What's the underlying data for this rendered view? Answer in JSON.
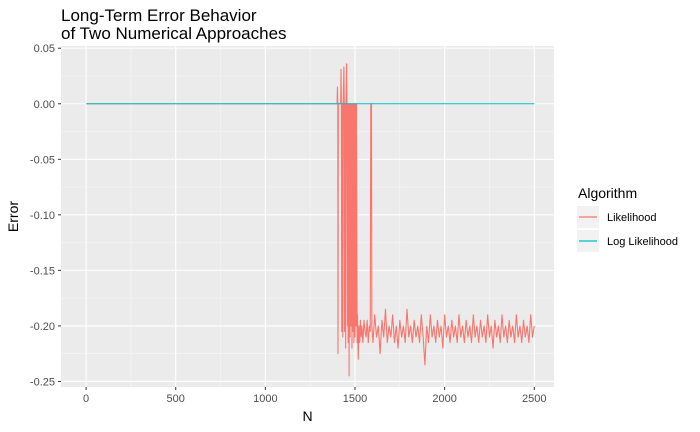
{
  "chart_data": {
    "type": "line",
    "title": "Long-Term Error Behavior\n of Two Numerical Approaches",
    "xlabel": "N",
    "ylabel": "Error",
    "xlim": [
      -140,
      2610
    ],
    "ylim": [
      -0.255,
      0.052
    ],
    "x_ticks": [
      0,
      500,
      1000,
      1500,
      2000,
      2500
    ],
    "x_tick_labels": [
      "0",
      "500",
      "1000",
      "1500",
      "2000",
      "2500"
    ],
    "y_ticks": [
      0.05,
      0.0,
      -0.05,
      -0.1,
      -0.15,
      -0.2,
      -0.25
    ],
    "y_tick_labels": [
      "0.05",
      "0.00",
      "-0.05",
      "-0.10",
      "-0.15",
      "-0.20",
      "-0.25"
    ],
    "legend": {
      "title": "Algorithm",
      "placement": "right",
      "entries": [
        "Likelihood",
        "Log Likelihood"
      ]
    },
    "series": [
      {
        "name": "Likelihood",
        "color": "#F8766D",
        "points": [
          [
            1,
            0
          ],
          [
            1400,
            0
          ],
          [
            1402,
            0.015
          ],
          [
            1404,
            0
          ],
          [
            1405,
            -0.225
          ],
          [
            1407,
            0
          ],
          [
            1420,
            0
          ],
          [
            1422,
            0.031
          ],
          [
            1424,
            0
          ],
          [
            1426,
            -0.205
          ],
          [
            1428,
            0
          ],
          [
            1432,
            -0.21
          ],
          [
            1434,
            0
          ],
          [
            1438,
            0.033
          ],
          [
            1440,
            0
          ],
          [
            1442,
            -0.205
          ],
          [
            1445,
            0
          ],
          [
            1448,
            -0.22
          ],
          [
            1450,
            0
          ],
          [
            1453,
            0.036
          ],
          [
            1455,
            0
          ],
          [
            1458,
            -0.2
          ],
          [
            1460,
            0
          ],
          [
            1462,
            -0.215
          ],
          [
            1464,
            0
          ],
          [
            1467,
            -0.245
          ],
          [
            1469,
            0
          ],
          [
            1472,
            -0.21
          ],
          [
            1474,
            0
          ],
          [
            1478,
            -0.2
          ],
          [
            1480,
            0
          ],
          [
            1483,
            -0.22
          ],
          [
            1485,
            0
          ],
          [
            1488,
            -0.205
          ],
          [
            1490,
            0
          ],
          [
            1494,
            -0.215
          ],
          [
            1496,
            0
          ],
          [
            1500,
            -0.21
          ],
          [
            1502,
            0
          ],
          [
            1506,
            -0.2
          ],
          [
            1508,
            0
          ],
          [
            1512,
            -0.215
          ],
          [
            1514,
            -0.19
          ],
          [
            1518,
            -0.23
          ],
          [
            1522,
            -0.2
          ],
          [
            1526,
            -0.215
          ],
          [
            1530,
            -0.195
          ],
          [
            1534,
            -0.21
          ],
          [
            1538,
            -0.2
          ],
          [
            1544,
            -0.215
          ],
          [
            1550,
            -0.195
          ],
          [
            1556,
            -0.205
          ],
          [
            1562,
            -0.21
          ],
          [
            1568,
            -0.195
          ],
          [
            1574,
            -0.215
          ],
          [
            1580,
            -0.2
          ],
          [
            1585,
            -0.205
          ],
          [
            1588,
            0
          ],
          [
            1592,
            0
          ],
          [
            1594,
            -0.2
          ],
          [
            1600,
            -0.215
          ],
          [
            1610,
            -0.19
          ],
          [
            1620,
            -0.21
          ],
          [
            1630,
            -0.2
          ],
          [
            1640,
            -0.225
          ],
          [
            1650,
            -0.195
          ],
          [
            1660,
            -0.21
          ],
          [
            1670,
            -0.185
          ],
          [
            1680,
            -0.215
          ],
          [
            1690,
            -0.2
          ],
          [
            1700,
            -0.21
          ],
          [
            1710,
            -0.19
          ],
          [
            1720,
            -0.215
          ],
          [
            1730,
            -0.2
          ],
          [
            1740,
            -0.22
          ],
          [
            1750,
            -0.195
          ],
          [
            1760,
            -0.21
          ],
          [
            1770,
            -0.2
          ],
          [
            1780,
            -0.215
          ],
          [
            1790,
            -0.185
          ],
          [
            1800,
            -0.21
          ],
          [
            1810,
            -0.2
          ],
          [
            1820,
            -0.215
          ],
          [
            1830,
            -0.195
          ],
          [
            1840,
            -0.21
          ],
          [
            1850,
            -0.2
          ],
          [
            1860,
            -0.215
          ],
          [
            1870,
            -0.19
          ],
          [
            1880,
            -0.21
          ],
          [
            1890,
            -0.235
          ],
          [
            1900,
            -0.2
          ],
          [
            1910,
            -0.215
          ],
          [
            1920,
            -0.19
          ],
          [
            1930,
            -0.21
          ],
          [
            1940,
            -0.2
          ],
          [
            1950,
            -0.215
          ],
          [
            1960,
            -0.195
          ],
          [
            1970,
            -0.21
          ],
          [
            1980,
            -0.2
          ],
          [
            1990,
            -0.22
          ],
          [
            2000,
            -0.19
          ],
          [
            2010,
            -0.21
          ],
          [
            2020,
            -0.2
          ],
          [
            2030,
            -0.215
          ],
          [
            2040,
            -0.195
          ],
          [
            2050,
            -0.21
          ],
          [
            2060,
            -0.2
          ],
          [
            2070,
            -0.215
          ],
          [
            2080,
            -0.19
          ],
          [
            2090,
            -0.21
          ],
          [
            2100,
            -0.2
          ],
          [
            2110,
            -0.215
          ],
          [
            2120,
            -0.195
          ],
          [
            2130,
            -0.21
          ],
          [
            2140,
            -0.2
          ],
          [
            2150,
            -0.215
          ],
          [
            2160,
            -0.19
          ],
          [
            2170,
            -0.21
          ],
          [
            2180,
            -0.2
          ],
          [
            2190,
            -0.215
          ],
          [
            2200,
            -0.195
          ],
          [
            2210,
            -0.21
          ],
          [
            2220,
            -0.2
          ],
          [
            2230,
            -0.215
          ],
          [
            2240,
            -0.19
          ],
          [
            2250,
            -0.21
          ],
          [
            2260,
            -0.2
          ],
          [
            2270,
            -0.22
          ],
          [
            2280,
            -0.195
          ],
          [
            2290,
            -0.21
          ],
          [
            2300,
            -0.2
          ],
          [
            2310,
            -0.215
          ],
          [
            2320,
            -0.19
          ],
          [
            2330,
            -0.21
          ],
          [
            2340,
            -0.2
          ],
          [
            2350,
            -0.215
          ],
          [
            2360,
            -0.195
          ],
          [
            2370,
            -0.21
          ],
          [
            2380,
            -0.2
          ],
          [
            2390,
            -0.215
          ],
          [
            2400,
            -0.19
          ],
          [
            2410,
            -0.21
          ],
          [
            2420,
            -0.2
          ],
          [
            2430,
            -0.215
          ],
          [
            2440,
            -0.195
          ],
          [
            2450,
            -0.21
          ],
          [
            2460,
            -0.2
          ],
          [
            2470,
            -0.215
          ],
          [
            2480,
            -0.19
          ],
          [
            2490,
            -0.21
          ],
          [
            2500,
            -0.2
          ]
        ]
      },
      {
        "name": "Log Likelihood",
        "color": "#00BFC4",
        "points": [
          [
            1,
            0
          ],
          [
            2500,
            0
          ]
        ]
      }
    ]
  }
}
